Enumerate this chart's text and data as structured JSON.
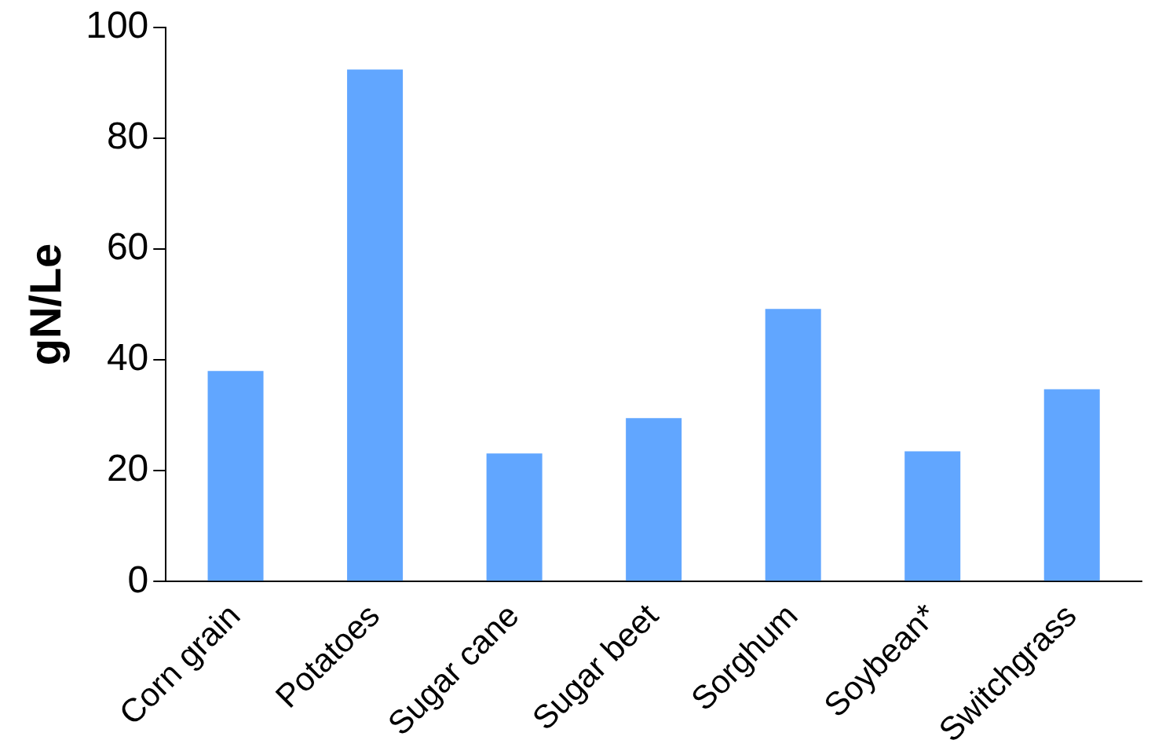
{
  "chart_data": {
    "type": "bar",
    "ylabel": "gN/Le",
    "categories": [
      "Corn grain",
      "Potatoes",
      "Sugar cane",
      "Sugar beet",
      "Sorghum",
      "Soybean*",
      "Switchgrass"
    ],
    "values": [
      38,
      92.4,
      23.1,
      29.5,
      49.2,
      23.5,
      34.7
    ],
    "color": "#61a6ff",
    "ylim": [
      0,
      100
    ],
    "yticks": [
      0,
      20,
      40,
      60,
      80,
      100
    ],
    "grid": false,
    "legend": false
  }
}
